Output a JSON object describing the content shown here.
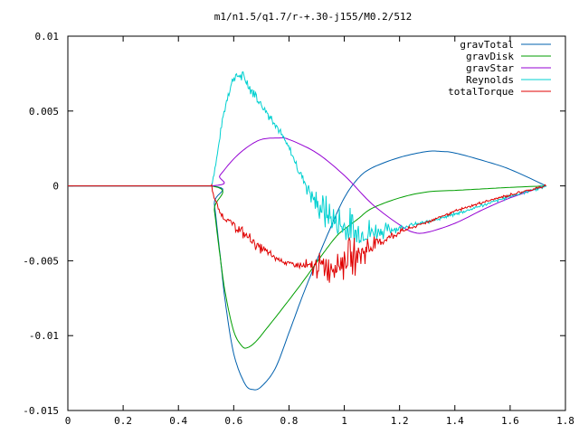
{
  "chart_data": {
    "type": "line",
    "title": "m1/n1.5/q1.7/r-+.30-j155/M0.2/512",
    "xlabel": "",
    "ylabel": "",
    "xlim": [
      0,
      1.8
    ],
    "ylim": [
      -0.015,
      0.01
    ],
    "xticks": [
      0,
      0.2,
      0.4,
      0.6,
      0.8,
      1,
      1.2,
      1.4,
      1.6,
      1.8
    ],
    "xtick_labels": [
      "0",
      "0.2",
      "0.4",
      "0.6",
      "0.8",
      "1",
      "1.2",
      "1.4",
      "1.6",
      "1.8"
    ],
    "yticks": [
      0.01,
      0.005,
      0,
      -0.005,
      -0.01,
      -0.015
    ],
    "ytick_labels": [
      "0.01",
      "0.005",
      "0",
      "-0.005",
      "-0.01",
      "-0.015"
    ],
    "grid": false,
    "legend_position": "top-right",
    "series": [
      {
        "name": "gravTotal",
        "color": "#0060ad",
        "noise": 0,
        "points": [
          [
            0,
            0
          ],
          [
            0.52,
            0
          ],
          [
            0.53,
            -0.0012
          ],
          [
            0.55,
            -0.0045
          ],
          [
            0.57,
            -0.0078
          ],
          [
            0.6,
            -0.0112
          ],
          [
            0.64,
            -0.0132
          ],
          [
            0.67,
            -0.0136
          ],
          [
            0.7,
            -0.0134
          ],
          [
            0.75,
            -0.0122
          ],
          [
            0.8,
            -0.0098
          ],
          [
            0.85,
            -0.0073
          ],
          [
            0.9,
            -0.005
          ],
          [
            0.95,
            -0.0028
          ],
          [
            1.0,
            -0.0008
          ],
          [
            1.05,
            0.0005
          ],
          [
            1.1,
            0.0012
          ],
          [
            1.2,
            0.0019
          ],
          [
            1.3,
            0.0023
          ],
          [
            1.35,
            0.0023
          ],
          [
            1.4,
            0.0022
          ],
          [
            1.5,
            0.0017
          ],
          [
            1.6,
            0.0011
          ],
          [
            1.73,
            0
          ]
        ]
      },
      {
        "name": "gravDisk",
        "color": "#009e00",
        "noise": 0,
        "points": [
          [
            0,
            0
          ],
          [
            0.52,
            0
          ],
          [
            0.53,
            -0.0016
          ],
          [
            0.55,
            -0.0046
          ],
          [
            0.57,
            -0.0072
          ],
          [
            0.6,
            -0.0097
          ],
          [
            0.63,
            -0.0107
          ],
          [
            0.65,
            -0.0108
          ],
          [
            0.68,
            -0.0104
          ],
          [
            0.72,
            -0.0095
          ],
          [
            0.78,
            -0.0081
          ],
          [
            0.85,
            -0.0064
          ],
          [
            0.92,
            -0.0046
          ],
          [
            0.97,
            -0.0034
          ],
          [
            1.0,
            -0.0029
          ],
          [
            1.05,
            -0.0022
          ],
          [
            1.1,
            -0.0015
          ],
          [
            1.2,
            -0.0008
          ],
          [
            1.3,
            -0.0004
          ],
          [
            1.4,
            -0.0003
          ],
          [
            1.5,
            -0.0002
          ],
          [
            1.6,
            -0.0001
          ],
          [
            1.73,
            0
          ]
        ]
      },
      {
        "name": "gravStar",
        "color": "#9400d3",
        "noise": 0,
        "points": [
          [
            0,
            0
          ],
          [
            0.52,
            0
          ],
          [
            0.55,
            0.0007
          ],
          [
            0.6,
            0.0018
          ],
          [
            0.65,
            0.0026
          ],
          [
            0.7,
            0.0031
          ],
          [
            0.76,
            0.0032
          ],
          [
            0.8,
            0.0031
          ],
          [
            0.9,
            0.0022
          ],
          [
            1.0,
            0.0007
          ],
          [
            1.1,
            -0.0012
          ],
          [
            1.2,
            -0.0026
          ],
          [
            1.25,
            -0.0031
          ],
          [
            1.3,
            -0.0031
          ],
          [
            1.4,
            -0.0025
          ],
          [
            1.5,
            -0.0016
          ],
          [
            1.6,
            -0.0008
          ],
          [
            1.73,
            0
          ]
        ]
      },
      {
        "name": "Reynolds",
        "color": "#00d0d0",
        "noise": 0.0007,
        "points": [
          [
            0,
            0
          ],
          [
            0.52,
            0
          ],
          [
            0.54,
            0.002
          ],
          [
            0.56,
            0.0045
          ],
          [
            0.58,
            0.0062
          ],
          [
            0.6,
            0.0072
          ],
          [
            0.62,
            0.0074
          ],
          [
            0.64,
            0.0071
          ],
          [
            0.67,
            0.0063
          ],
          [
            0.7,
            0.0054
          ],
          [
            0.75,
            0.0042
          ],
          [
            0.8,
            0.0025
          ],
          [
            0.85,
            0.0005
          ],
          [
            0.9,
            -0.0012
          ],
          [
            0.95,
            -0.0022
          ],
          [
            1.0,
            -0.0028
          ],
          [
            1.05,
            -0.0032
          ],
          [
            1.1,
            -0.0031
          ],
          [
            1.2,
            -0.0028
          ],
          [
            1.3,
            -0.0024
          ],
          [
            1.4,
            -0.0019
          ],
          [
            1.5,
            -0.0013
          ],
          [
            1.6,
            -0.0007
          ],
          [
            1.73,
            0
          ]
        ]
      },
      {
        "name": "totalTorque",
        "color": "#e00000",
        "noise": 0.0006,
        "points": [
          [
            0,
            0
          ],
          [
            0.52,
            0
          ],
          [
            0.53,
            -0.0008
          ],
          [
            0.55,
            -0.0018
          ],
          [
            0.57,
            -0.0022
          ],
          [
            0.6,
            -0.0026
          ],
          [
            0.65,
            -0.0034
          ],
          [
            0.7,
            -0.0042
          ],
          [
            0.75,
            -0.0048
          ],
          [
            0.8,
            -0.0052
          ],
          [
            0.85,
            -0.0054
          ],
          [
            0.9,
            -0.0054
          ],
          [
            0.95,
            -0.0053
          ],
          [
            1.0,
            -0.005
          ],
          [
            1.05,
            -0.0046
          ],
          [
            1.1,
            -0.004
          ],
          [
            1.2,
            -0.0031
          ],
          [
            1.3,
            -0.0024
          ],
          [
            1.4,
            -0.0017
          ],
          [
            1.5,
            -0.0011
          ],
          [
            1.6,
            -0.0006
          ],
          [
            1.73,
            0
          ]
        ]
      }
    ]
  }
}
